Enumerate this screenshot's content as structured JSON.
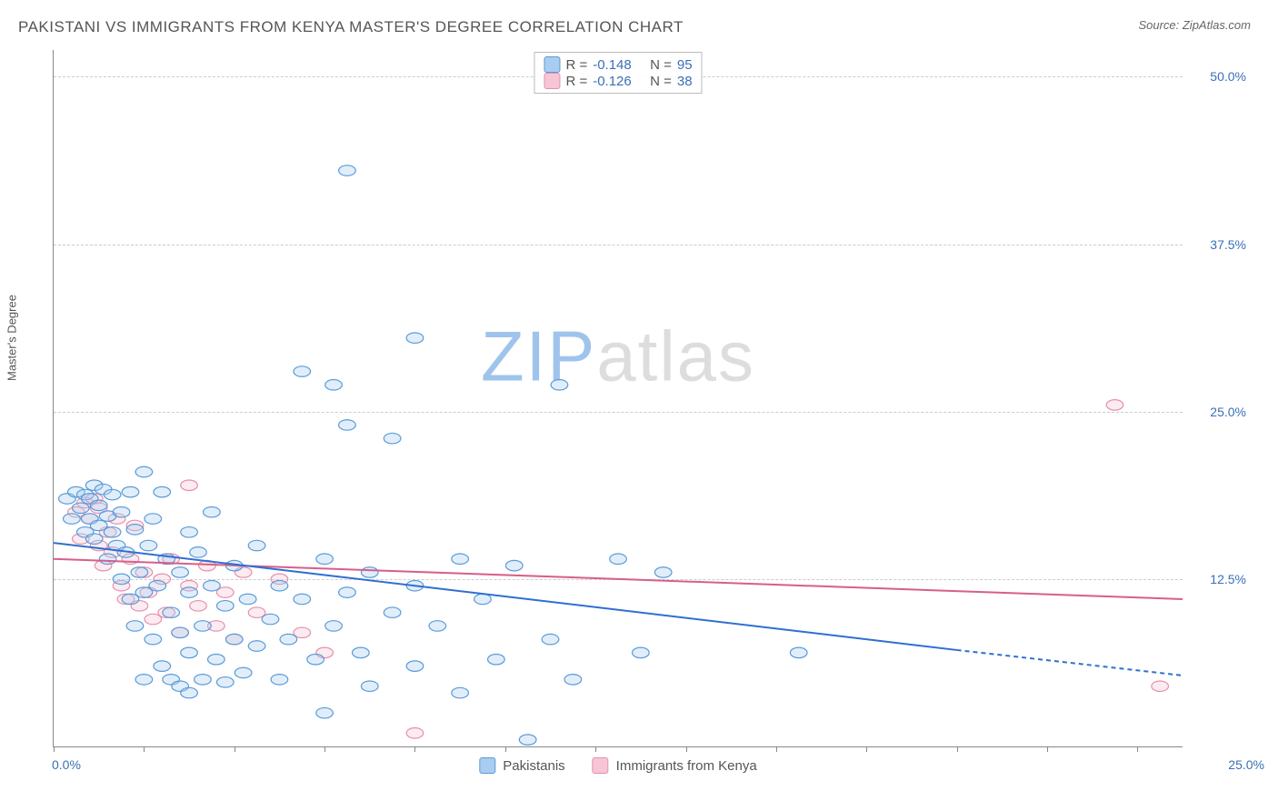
{
  "title": "PAKISTANI VS IMMIGRANTS FROM KENYA MASTER'S DEGREE CORRELATION CHART",
  "source_prefix": "Source: ",
  "source": "ZipAtlas.com",
  "ylabel": "Master's Degree",
  "watermark_a": "ZIP",
  "watermark_b": "atlas",
  "axes": {
    "xlim": [
      0,
      25
    ],
    "ylim": [
      0,
      52
    ],
    "xtick_zero": "0.0%",
    "xtick_max": "25.0%",
    "xtick_positions_pct": [
      0,
      8,
      16,
      24,
      32,
      40,
      48,
      56,
      64,
      72,
      80,
      88,
      96
    ],
    "yticks": [
      {
        "v": 12.5,
        "label": "12.5%"
      },
      {
        "v": 25.0,
        "label": "25.0%"
      },
      {
        "v": 37.5,
        "label": "37.5%"
      },
      {
        "v": 50.0,
        "label": "50.0%"
      }
    ],
    "tick_color": "#3b6fb6"
  },
  "colors": {
    "series1_fill": "#a9cdf0",
    "series1_stroke": "#5a9bd8",
    "series1_line": "#2f6fd0",
    "series2_fill": "#f6c6d5",
    "series2_stroke": "#e590ae",
    "series2_line": "#d65f8b",
    "grid": "#cccccc",
    "axis": "#888888",
    "background": "#ffffff"
  },
  "legend_top": {
    "r_label": "R =",
    "n_label": "N =",
    "rows": [
      {
        "series": 1,
        "r": "-0.148",
        "n": "95"
      },
      {
        "series": 2,
        "r": "-0.126",
        "n": "38"
      }
    ],
    "value_color": "#3b6fb6"
  },
  "legend_bottom": [
    {
      "series": 1,
      "label": "Pakistanis"
    },
    {
      "series": 2,
      "label": "Immigrants from Kenya"
    }
  ],
  "trend_lines": {
    "series1": {
      "x1": 0,
      "y1": 15.2,
      "x2_solid": 20.0,
      "y2_solid": 7.2,
      "x2_dash": 25.0,
      "y2_dash": 5.3
    },
    "series2": {
      "x1": 0,
      "y1": 14.0,
      "x2": 25.0,
      "y2": 11.0
    }
  },
  "marker_radius": 7,
  "series1_points": [
    [
      0.3,
      18.5
    ],
    [
      0.4,
      17.0
    ],
    [
      0.5,
      19.0
    ],
    [
      0.6,
      17.8
    ],
    [
      0.7,
      16.0
    ],
    [
      0.7,
      18.8
    ],
    [
      0.8,
      18.5
    ],
    [
      0.8,
      17.0
    ],
    [
      0.9,
      19.5
    ],
    [
      0.9,
      15.5
    ],
    [
      1.0,
      18.0
    ],
    [
      1.0,
      16.5
    ],
    [
      1.1,
      19.2
    ],
    [
      1.2,
      17.2
    ],
    [
      1.2,
      14.0
    ],
    [
      1.3,
      16.0
    ],
    [
      1.3,
      18.8
    ],
    [
      1.4,
      15.0
    ],
    [
      1.5,
      17.5
    ],
    [
      1.5,
      12.5
    ],
    [
      1.6,
      14.5
    ],
    [
      1.7,
      19.0
    ],
    [
      1.7,
      11.0
    ],
    [
      1.8,
      16.2
    ],
    [
      1.8,
      9.0
    ],
    [
      1.9,
      13.0
    ],
    [
      2.0,
      20.5
    ],
    [
      2.0,
      11.5
    ],
    [
      2.0,
      5.0
    ],
    [
      2.1,
      15.0
    ],
    [
      2.2,
      8.0
    ],
    [
      2.2,
      17.0
    ],
    [
      2.3,
      12.0
    ],
    [
      2.4,
      6.0
    ],
    [
      2.4,
      19.0
    ],
    [
      2.5,
      14.0
    ],
    [
      2.6,
      10.0
    ],
    [
      2.6,
      5.0
    ],
    [
      2.8,
      13.0
    ],
    [
      2.8,
      8.5
    ],
    [
      2.8,
      4.5
    ],
    [
      3.0,
      16.0
    ],
    [
      3.0,
      11.5
    ],
    [
      3.0,
      7.0
    ],
    [
      3.0,
      4.0
    ],
    [
      3.2,
      14.5
    ],
    [
      3.3,
      9.0
    ],
    [
      3.3,
      5.0
    ],
    [
      3.5,
      12.0
    ],
    [
      3.5,
      17.5
    ],
    [
      3.6,
      6.5
    ],
    [
      3.8,
      10.5
    ],
    [
      3.8,
      4.8
    ],
    [
      4.0,
      13.5
    ],
    [
      4.0,
      8.0
    ],
    [
      4.2,
      5.5
    ],
    [
      4.3,
      11.0
    ],
    [
      4.5,
      15.0
    ],
    [
      4.5,
      7.5
    ],
    [
      4.8,
      9.5
    ],
    [
      5.0,
      12.0
    ],
    [
      5.0,
      5.0
    ],
    [
      5.2,
      8.0
    ],
    [
      5.5,
      28.0
    ],
    [
      5.5,
      11.0
    ],
    [
      5.8,
      6.5
    ],
    [
      6.0,
      14.0
    ],
    [
      6.0,
      2.5
    ],
    [
      6.2,
      27.0
    ],
    [
      6.2,
      9.0
    ],
    [
      6.5,
      43.0
    ],
    [
      6.5,
      24.0
    ],
    [
      6.5,
      11.5
    ],
    [
      6.8,
      7.0
    ],
    [
      7.0,
      13.0
    ],
    [
      7.0,
      4.5
    ],
    [
      7.5,
      10.0
    ],
    [
      7.5,
      23.0
    ],
    [
      8.0,
      30.5
    ],
    [
      8.0,
      12.0
    ],
    [
      8.0,
      6.0
    ],
    [
      8.5,
      9.0
    ],
    [
      9.0,
      14.0
    ],
    [
      9.0,
      4.0
    ],
    [
      9.5,
      11.0
    ],
    [
      9.8,
      6.5
    ],
    [
      10.2,
      13.5
    ],
    [
      10.5,
      0.5
    ],
    [
      11.0,
      8.0
    ],
    [
      11.2,
      27.0
    ],
    [
      11.5,
      5.0
    ],
    [
      12.5,
      14.0
    ],
    [
      13.0,
      7.0
    ],
    [
      13.5,
      13.0
    ],
    [
      16.5,
      7.0
    ]
  ],
  "series2_points": [
    [
      0.5,
      17.5
    ],
    [
      0.6,
      15.5
    ],
    [
      0.7,
      18.2
    ],
    [
      0.8,
      17.0
    ],
    [
      0.9,
      18.5
    ],
    [
      1.0,
      15.0
    ],
    [
      1.0,
      17.8
    ],
    [
      1.1,
      13.5
    ],
    [
      1.2,
      16.0
    ],
    [
      1.3,
      14.5
    ],
    [
      1.4,
      17.0
    ],
    [
      1.5,
      12.0
    ],
    [
      1.6,
      11.0
    ],
    [
      1.7,
      14.0
    ],
    [
      1.8,
      16.5
    ],
    [
      1.9,
      10.5
    ],
    [
      2.0,
      13.0
    ],
    [
      2.1,
      11.5
    ],
    [
      2.2,
      9.5
    ],
    [
      2.4,
      12.5
    ],
    [
      2.5,
      10.0
    ],
    [
      2.6,
      14.0
    ],
    [
      2.8,
      8.5
    ],
    [
      3.0,
      12.0
    ],
    [
      3.0,
      19.5
    ],
    [
      3.2,
      10.5
    ],
    [
      3.4,
      13.5
    ],
    [
      3.6,
      9.0
    ],
    [
      3.8,
      11.5
    ],
    [
      4.0,
      8.0
    ],
    [
      4.2,
      13.0
    ],
    [
      4.5,
      10.0
    ],
    [
      5.0,
      12.5
    ],
    [
      5.5,
      8.5
    ],
    [
      6.0,
      7.0
    ],
    [
      8.0,
      1.0
    ],
    [
      23.5,
      25.5
    ],
    [
      24.5,
      4.5
    ]
  ]
}
